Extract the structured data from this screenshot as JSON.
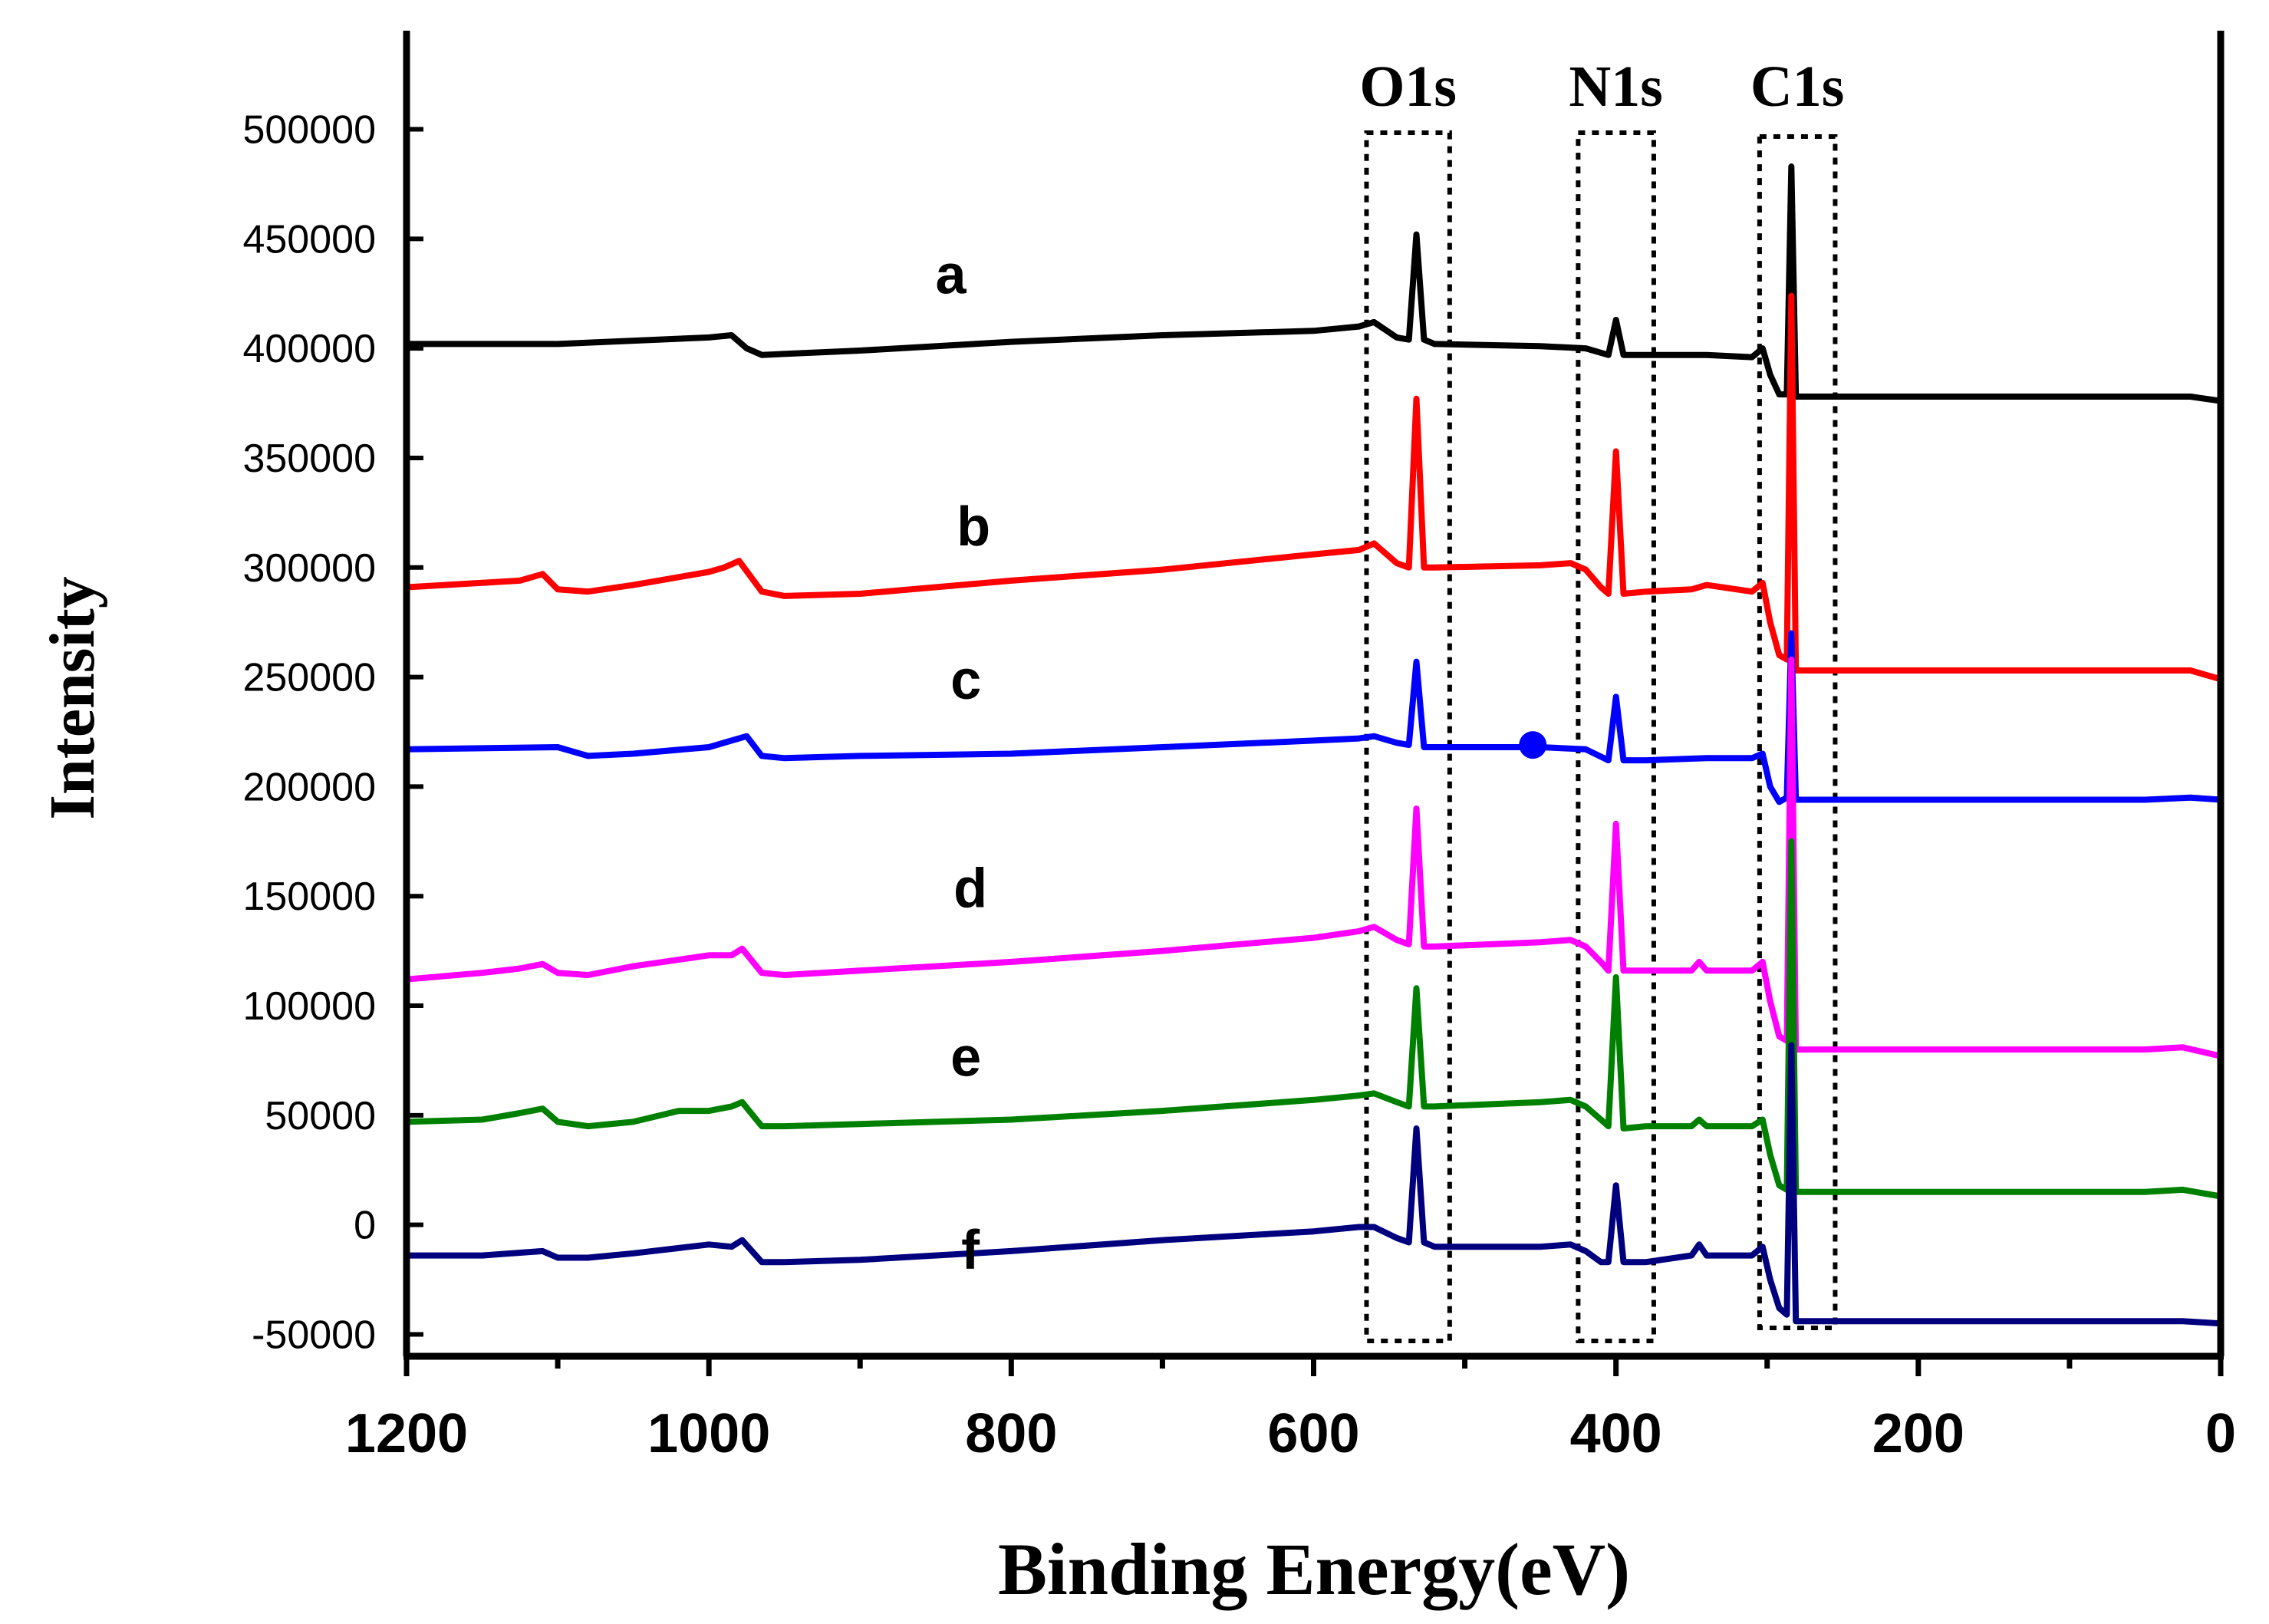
{
  "chart_data": {
    "type": "line",
    "title": "",
    "xlabel": "Binding Energy(eV)",
    "ylabel": "Intensity",
    "xlim": [
      1200,
      0
    ],
    "ylim": [
      -60000,
      545000
    ],
    "x_reversed": true,
    "x_ticks": [
      1200,
      1000,
      800,
      600,
      400,
      200,
      0
    ],
    "x_tick_labels": [
      "1200",
      "1000",
      "800",
      "600",
      "400",
      "200",
      "0"
    ],
    "y_ticks": [
      -50000,
      0,
      50000,
      100000,
      150000,
      200000,
      250000,
      300000,
      350000,
      400000,
      450000,
      500000
    ],
    "y_tick_labels": [
      "-50000",
      "0",
      "50000",
      "100000",
      "150000",
      "200000",
      "250000",
      "300000",
      "350000",
      "400000",
      "450000",
      "500000"
    ],
    "grid": false,
    "peak_regions": [
      {
        "label": "O1s",
        "x_from": 565,
        "x_to": 510
      },
      {
        "label": "N1s",
        "x_from": 425,
        "x_to": 375
      },
      {
        "label": "C1s",
        "x_from": 305,
        "x_to": 255
      }
    ],
    "series": [
      {
        "label": "a",
        "color": "#000000",
        "label_x": 840,
        "label_y": 425000,
        "points": [
          [
            1200,
            402000
          ],
          [
            1100,
            402000
          ],
          [
            1000,
            405000
          ],
          [
            985,
            406000
          ],
          [
            975,
            400000
          ],
          [
            965,
            397000
          ],
          [
            900,
            399000
          ],
          [
            800,
            403000
          ],
          [
            700,
            406000
          ],
          [
            600,
            408000
          ],
          [
            570,
            410000
          ],
          [
            560,
            412000
          ],
          [
            545,
            405000
          ],
          [
            537,
            404000
          ],
          [
            532,
            452000
          ],
          [
            527,
            404000
          ],
          [
            520,
            402000
          ],
          [
            450,
            401000
          ],
          [
            420,
            400000
          ],
          [
            405,
            397000
          ],
          [
            400,
            413000
          ],
          [
            395,
            397000
          ],
          [
            380,
            397000
          ],
          [
            340,
            397000
          ],
          [
            310,
            396000
          ],
          [
            303,
            400000
          ],
          [
            298,
            388000
          ],
          [
            292,
            379000
          ],
          [
            287,
            379000
          ],
          [
            284,
            483000
          ],
          [
            281,
            378000
          ],
          [
            270,
            378000
          ],
          [
            150,
            378000
          ],
          [
            50,
            378000
          ],
          [
            20,
            378000
          ],
          [
            0,
            376000
          ]
        ]
      },
      {
        "label": "b",
        "color": "#ff0000",
        "label_x": 825,
        "label_y": 310000,
        "points": [
          [
            1200,
            291000
          ],
          [
            1150,
            293000
          ],
          [
            1125,
            294000
          ],
          [
            1110,
            297000
          ],
          [
            1100,
            290000
          ],
          [
            1080,
            289000
          ],
          [
            1050,
            292000
          ],
          [
            1000,
            298000
          ],
          [
            990,
            300000
          ],
          [
            980,
            303000
          ],
          [
            965,
            289000
          ],
          [
            950,
            287000
          ],
          [
            900,
            288000
          ],
          [
            800,
            294000
          ],
          [
            700,
            299000
          ],
          [
            600,
            306000
          ],
          [
            570,
            308000
          ],
          [
            560,
            311000
          ],
          [
            545,
            302000
          ],
          [
            537,
            300000
          ],
          [
            532,
            377000
          ],
          [
            527,
            300000
          ],
          [
            520,
            300000
          ],
          [
            450,
            301000
          ],
          [
            430,
            302000
          ],
          [
            420,
            299000
          ],
          [
            410,
            291000
          ],
          [
            405,
            288000
          ],
          [
            400,
            353000
          ],
          [
            395,
            288000
          ],
          [
            380,
            289000
          ],
          [
            350,
            290000
          ],
          [
            340,
            292000
          ],
          [
            320,
            290000
          ],
          [
            310,
            289000
          ],
          [
            303,
            293000
          ],
          [
            298,
            275000
          ],
          [
            292,
            260000
          ],
          [
            287,
            258000
          ],
          [
            284,
            424000
          ],
          [
            281,
            253000
          ],
          [
            270,
            253000
          ],
          [
            150,
            253000
          ],
          [
            50,
            253000
          ],
          [
            20,
            253000
          ],
          [
            0,
            249000
          ]
        ]
      },
      {
        "label": "c",
        "color": "#0000ff",
        "label_x": 830,
        "label_y": 240000,
        "points": [
          [
            1200,
            217000
          ],
          [
            1100,
            218000
          ],
          [
            1080,
            214000
          ],
          [
            1050,
            215000
          ],
          [
            1000,
            218000
          ],
          [
            985,
            221000
          ],
          [
            975,
            223000
          ],
          [
            965,
            214000
          ],
          [
            950,
            213000
          ],
          [
            900,
            214000
          ],
          [
            800,
            215000
          ],
          [
            700,
            218000
          ],
          [
            600,
            221000
          ],
          [
            570,
            222000
          ],
          [
            560,
            223000
          ],
          [
            545,
            220000
          ],
          [
            537,
            219000
          ],
          [
            532,
            257000
          ],
          [
            527,
            218000
          ],
          [
            520,
            218000
          ],
          [
            450,
            218000
          ],
          [
            420,
            217000
          ],
          [
            405,
            212000
          ],
          [
            400,
            241000
          ],
          [
            395,
            212000
          ],
          [
            380,
            212000
          ],
          [
            340,
            213000
          ],
          [
            310,
            213000
          ],
          [
            303,
            215000
          ],
          [
            298,
            200000
          ],
          [
            292,
            193000
          ],
          [
            287,
            195000
          ],
          [
            284,
            270000
          ],
          [
            281,
            194000
          ],
          [
            270,
            194000
          ],
          [
            150,
            194000
          ],
          [
            50,
            194000
          ],
          [
            20,
            195000
          ],
          [
            0,
            194000
          ]
        ]
      },
      {
        "label": "d",
        "color": "#ff00ff",
        "label_x": 827,
        "label_y": 145000,
        "points": [
          [
            1200,
            112000
          ],
          [
            1150,
            115000
          ],
          [
            1125,
            117000
          ],
          [
            1110,
            119000
          ],
          [
            1100,
            115000
          ],
          [
            1080,
            114000
          ],
          [
            1050,
            118000
          ],
          [
            1000,
            123000
          ],
          [
            985,
            123000
          ],
          [
            978,
            126000
          ],
          [
            965,
            115000
          ],
          [
            950,
            114000
          ],
          [
            900,
            116000
          ],
          [
            800,
            120000
          ],
          [
            700,
            125000
          ],
          [
            600,
            131000
          ],
          [
            570,
            134000
          ],
          [
            560,
            136000
          ],
          [
            545,
            130000
          ],
          [
            537,
            128000
          ],
          [
            532,
            190000
          ],
          [
            527,
            127000
          ],
          [
            520,
            127000
          ],
          [
            450,
            129000
          ],
          [
            430,
            130000
          ],
          [
            420,
            127000
          ],
          [
            410,
            120000
          ],
          [
            405,
            116000
          ],
          [
            400,
            183000
          ],
          [
            395,
            116000
          ],
          [
            380,
            116000
          ],
          [
            350,
            116000
          ],
          [
            345,
            120000
          ],
          [
            340,
            116000
          ],
          [
            310,
            116000
          ],
          [
            303,
            120000
          ],
          [
            298,
            102000
          ],
          [
            292,
            86000
          ],
          [
            287,
            84000
          ],
          [
            284,
            258000
          ],
          [
            281,
            80000
          ],
          [
            270,
            80000
          ],
          [
            150,
            80000
          ],
          [
            50,
            80000
          ],
          [
            25,
            81000
          ],
          [
            0,
            77000
          ]
        ]
      },
      {
        "label": "e",
        "color": "#008000",
        "label_x": 830,
        "label_y": 68000,
        "points": [
          [
            1200,
            47000
          ],
          [
            1150,
            48000
          ],
          [
            1125,
            51000
          ],
          [
            1110,
            53000
          ],
          [
            1100,
            47000
          ],
          [
            1080,
            45000
          ],
          [
            1050,
            47000
          ],
          [
            1020,
            52000
          ],
          [
            1000,
            52000
          ],
          [
            985,
            54000
          ],
          [
            978,
            56000
          ],
          [
            965,
            45000
          ],
          [
            950,
            45000
          ],
          [
            900,
            46000
          ],
          [
            800,
            48000
          ],
          [
            700,
            52000
          ],
          [
            600,
            57000
          ],
          [
            570,
            59000
          ],
          [
            560,
            60000
          ],
          [
            545,
            56000
          ],
          [
            537,
            54000
          ],
          [
            532,
            108000
          ],
          [
            527,
            54000
          ],
          [
            520,
            54000
          ],
          [
            450,
            56000
          ],
          [
            430,
            57000
          ],
          [
            420,
            54000
          ],
          [
            410,
            48000
          ],
          [
            405,
            45000
          ],
          [
            400,
            113000
          ],
          [
            395,
            44000
          ],
          [
            380,
            45000
          ],
          [
            350,
            45000
          ],
          [
            345,
            48000
          ],
          [
            340,
            45000
          ],
          [
            310,
            45000
          ],
          [
            303,
            48000
          ],
          [
            298,
            32000
          ],
          [
            292,
            18000
          ],
          [
            287,
            16000
          ],
          [
            284,
            175000
          ],
          [
            281,
            15000
          ],
          [
            270,
            15000
          ],
          [
            150,
            15000
          ],
          [
            50,
            15000
          ],
          [
            25,
            16000
          ],
          [
            0,
            13000
          ]
        ]
      },
      {
        "label": "f",
        "color": "#00007f",
        "label_x": 827,
        "label_y": -20000,
        "points": [
          [
            1200,
            -14000
          ],
          [
            1150,
            -14000
          ],
          [
            1110,
            -12000
          ],
          [
            1100,
            -15000
          ],
          [
            1080,
            -15000
          ],
          [
            1050,
            -13000
          ],
          [
            1000,
            -9000
          ],
          [
            985,
            -10000
          ],
          [
            978,
            -7000
          ],
          [
            965,
            -17000
          ],
          [
            950,
            -17000
          ],
          [
            900,
            -16000
          ],
          [
            800,
            -12000
          ],
          [
            700,
            -7000
          ],
          [
            600,
            -3000
          ],
          [
            570,
            -1000
          ],
          [
            560,
            -1000
          ],
          [
            545,
            -6000
          ],
          [
            537,
            -8000
          ],
          [
            532,
            44000
          ],
          [
            527,
            -8000
          ],
          [
            520,
            -10000
          ],
          [
            450,
            -10000
          ],
          [
            430,
            -9000
          ],
          [
            420,
            -12000
          ],
          [
            410,
            -17000
          ],
          [
            405,
            -17000
          ],
          [
            400,
            18000
          ],
          [
            395,
            -17000
          ],
          [
            380,
            -17000
          ],
          [
            350,
            -14000
          ],
          [
            345,
            -9000
          ],
          [
            340,
            -14000
          ],
          [
            310,
            -14000
          ],
          [
            303,
            -10000
          ],
          [
            298,
            -25000
          ],
          [
            292,
            -38000
          ],
          [
            287,
            -41000
          ],
          [
            284,
            82000
          ],
          [
            281,
            -44000
          ],
          [
            270,
            -44000
          ],
          [
            150,
            -44000
          ],
          [
            50,
            -44000
          ],
          [
            25,
            -44000
          ],
          [
            0,
            -45000
          ]
        ]
      }
    ],
    "markers": [
      {
        "x": 455,
        "y": 219000,
        "color": "#0000ff"
      }
    ]
  }
}
